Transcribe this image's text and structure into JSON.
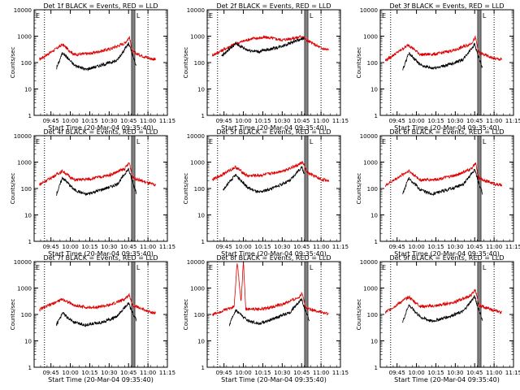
{
  "chart_data": {
    "type": "line",
    "figure_label": "Start Time (20-Mar-04 09:35:40)",
    "ylabel": "Counts/sec",
    "y_scale": "log",
    "ylim": [
      1,
      10000
    ],
    "xlim_minutes_labels": [
      "09:45",
      "10:00",
      "10:15",
      "10:30",
      "10:45",
      "11:00",
      "11:15"
    ],
    "y_tick_labels": [
      "1",
      "10",
      "100",
      "1000",
      "10000"
    ],
    "marker_labels": [
      "E",
      "L"
    ],
    "colors": {
      "events": "#000000",
      "lld": "#dd0000",
      "axes": "#000000"
    },
    "grid": false,
    "panels": [
      {
        "title": "Det 1f BLACK = Events, RED = LLD",
        "events": [
          [
            9.82,
            60
          ],
          [
            9.9,
            240
          ],
          [
            10.05,
            80
          ],
          [
            10.2,
            55
          ],
          [
            10.4,
            80
          ],
          [
            10.6,
            120
          ],
          [
            10.75,
            520
          ],
          [
            10.78,
            300
          ],
          [
            10.85,
            70
          ]
        ],
        "lld": [
          [
            9.6,
            130
          ],
          [
            9.9,
            480
          ],
          [
            10.05,
            200
          ],
          [
            10.25,
            220
          ],
          [
            10.5,
            320
          ],
          [
            10.7,
            540
          ],
          [
            10.76,
            920
          ],
          [
            10.8,
            250
          ],
          [
            11.0,
            150
          ],
          [
            11.1,
            130
          ]
        ]
      },
      {
        "title": "Det 2f BLACK = Events, RED = LLD",
        "events": [
          [
            9.72,
            180
          ],
          [
            9.9,
            520
          ],
          [
            10.05,
            300
          ],
          [
            10.2,
            260
          ],
          [
            10.45,
            380
          ],
          [
            10.7,
            700
          ],
          [
            10.78,
            800
          ]
        ],
        "lld": [
          [
            9.6,
            190
          ],
          [
            9.9,
            520
          ],
          [
            10.1,
            800
          ],
          [
            10.3,
            900
          ],
          [
            10.5,
            720
          ],
          [
            10.7,
            900
          ],
          [
            10.76,
            1000
          ],
          [
            10.82,
            700
          ],
          [
            11.0,
            350
          ],
          [
            11.1,
            300
          ]
        ]
      },
      {
        "title": "Det 3f BLACK = Events, RED = LLD",
        "events": [
          [
            9.82,
            50
          ],
          [
            9.9,
            230
          ],
          [
            10.05,
            80
          ],
          [
            10.2,
            60
          ],
          [
            10.4,
            80
          ],
          [
            10.6,
            130
          ],
          [
            10.75,
            500
          ],
          [
            10.78,
            250
          ],
          [
            10.85,
            60
          ]
        ],
        "lld": [
          [
            9.6,
            120
          ],
          [
            9.9,
            470
          ],
          [
            10.05,
            200
          ],
          [
            10.25,
            210
          ],
          [
            10.5,
            300
          ],
          [
            10.7,
            520
          ],
          [
            10.76,
            880
          ],
          [
            10.8,
            240
          ],
          [
            11.0,
            140
          ],
          [
            11.1,
            130
          ]
        ]
      },
      {
        "title": "Det 4f BLACK = Events, RED = LLD",
        "events": [
          [
            9.82,
            60
          ],
          [
            9.9,
            260
          ],
          [
            10.05,
            90
          ],
          [
            10.2,
            60
          ],
          [
            10.4,
            90
          ],
          [
            10.6,
            140
          ],
          [
            10.75,
            550
          ],
          [
            10.78,
            280
          ],
          [
            10.85,
            70
          ]
        ],
        "lld": [
          [
            9.6,
            140
          ],
          [
            9.9,
            460
          ],
          [
            10.05,
            210
          ],
          [
            10.25,
            230
          ],
          [
            10.5,
            320
          ],
          [
            10.7,
            560
          ],
          [
            10.76,
            960
          ],
          [
            10.8,
            260
          ],
          [
            11.0,
            160
          ],
          [
            11.1,
            130
          ]
        ]
      },
      {
        "title": "Det 5f BLACK = Events, RED = LLD",
        "events": [
          [
            9.74,
            90
          ],
          [
            9.9,
            330
          ],
          [
            10.05,
            110
          ],
          [
            10.2,
            70
          ],
          [
            10.4,
            110
          ],
          [
            10.6,
            200
          ],
          [
            10.75,
            650
          ],
          [
            10.78,
            400
          ]
        ],
        "lld": [
          [
            9.6,
            210
          ],
          [
            9.9,
            650
          ],
          [
            10.05,
            300
          ],
          [
            10.25,
            320
          ],
          [
            10.5,
            460
          ],
          [
            10.7,
            760
          ],
          [
            10.76,
            1000
          ],
          [
            10.82,
            400
          ],
          [
            11.0,
            220
          ],
          [
            11.1,
            200
          ]
        ]
      },
      {
        "title": "Det 6f BLACK = Events, RED = LLD",
        "events": [
          [
            9.82,
            60
          ],
          [
            9.9,
            250
          ],
          [
            10.05,
            90
          ],
          [
            10.2,
            60
          ],
          [
            10.4,
            90
          ],
          [
            10.6,
            140
          ],
          [
            10.75,
            520
          ],
          [
            10.78,
            270
          ],
          [
            10.85,
            65
          ]
        ],
        "lld": [
          [
            9.6,
            130
          ],
          [
            9.9,
            470
          ],
          [
            10.05,
            210
          ],
          [
            10.25,
            220
          ],
          [
            10.5,
            310
          ],
          [
            10.7,
            540
          ],
          [
            10.76,
            920
          ],
          [
            10.8,
            250
          ],
          [
            11.0,
            150
          ],
          [
            11.1,
            130
          ]
        ]
      },
      {
        "title": "Det 7f BLACK = Events, RED = LLD",
        "events": [
          [
            9.82,
            40
          ],
          [
            9.9,
            110
          ],
          [
            10.05,
            50
          ],
          [
            10.2,
            40
          ],
          [
            10.4,
            50
          ],
          [
            10.6,
            80
          ],
          [
            10.75,
            280
          ],
          [
            10.78,
            150
          ],
          [
            10.85,
            60
          ]
        ],
        "lld": [
          [
            9.6,
            150
          ],
          [
            9.9,
            380
          ],
          [
            10.05,
            220
          ],
          [
            10.25,
            180
          ],
          [
            10.5,
            220
          ],
          [
            10.7,
            380
          ],
          [
            10.76,
            560
          ],
          [
            10.8,
            230
          ],
          [
            11.0,
            130
          ],
          [
            11.1,
            110
          ]
        ]
      },
      {
        "title": "Det 8f BLACK = Events, RED = LLD",
        "events": [
          [
            9.82,
            40
          ],
          [
            9.9,
            150
          ],
          [
            10.05,
            60
          ],
          [
            10.2,
            45
          ],
          [
            10.4,
            70
          ],
          [
            10.6,
            120
          ],
          [
            10.75,
            400
          ],
          [
            10.78,
            200
          ],
          [
            10.85,
            60
          ]
        ],
        "lld": [
          [
            9.6,
            100
          ],
          [
            9.88,
            200
          ],
          [
            9.92,
            10000
          ],
          [
            9.97,
            300
          ],
          [
            10.0,
            10000
          ],
          [
            10.03,
            160
          ],
          [
            10.25,
            160
          ],
          [
            10.5,
            240
          ],
          [
            10.7,
            420
          ],
          [
            10.76,
            650
          ],
          [
            10.8,
            180
          ],
          [
            11.0,
            120
          ],
          [
            11.1,
            100
          ]
        ]
      },
      {
        "title": "Det 9f BLACK = Events, RED = LLD",
        "events": [
          [
            9.82,
            50
          ],
          [
            9.9,
            230
          ],
          [
            10.05,
            80
          ],
          [
            10.2,
            55
          ],
          [
            10.4,
            80
          ],
          [
            10.6,
            130
          ],
          [
            10.75,
            480
          ],
          [
            10.78,
            240
          ],
          [
            10.85,
            60
          ]
        ],
        "lld": [
          [
            9.6,
            120
          ],
          [
            9.9,
            460
          ],
          [
            10.05,
            200
          ],
          [
            10.25,
            210
          ],
          [
            10.5,
            300
          ],
          [
            10.7,
            520
          ],
          [
            10.76,
            860
          ],
          [
            10.8,
            230
          ],
          [
            11.0,
            140
          ],
          [
            11.1,
            120
          ]
        ]
      }
    ]
  }
}
